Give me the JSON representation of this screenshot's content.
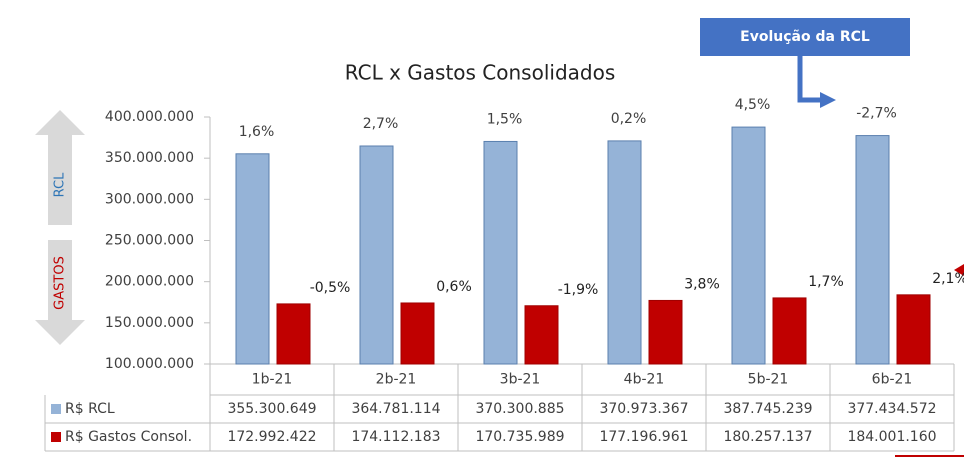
{
  "chart_data": {
    "type": "bar",
    "title": "RCL x Gastos Consolidados",
    "callout": "Evolução da RCL",
    "side_labels": [
      "RCL",
      "GASTOS"
    ],
    "categories": [
      "1b-21",
      "2b-21",
      "3b-21",
      "4b-21",
      "5b-21",
      "6b-21"
    ],
    "series": [
      {
        "name": "R$ RCL",
        "color": "#95b3d7",
        "values": [
          355300649,
          364781114,
          370300885,
          370973367,
          387745239,
          377434572
        ],
        "value_labels": [
          "355.300.649",
          "364.781.114",
          "370.300.885",
          "370.973.367",
          "387.745.239",
          "377.434.572"
        ],
        "data_labels": [
          "1,6%",
          "2,7%",
          "1,5%",
          "0,2%",
          "4,5%",
          "-2,7%"
        ]
      },
      {
        "name": "R$ Gastos Consol.",
        "color": "#c00000",
        "values": [
          172992422,
          174112183,
          170735989,
          177196961,
          180257137,
          184001160
        ],
        "value_labels": [
          "172.992.422",
          "174.112.183",
          "170.735.989",
          "177.196.961",
          "180.257.137",
          "184.001.160"
        ],
        "data_labels": [
          "-0,5%",
          "0,6%",
          "-1,9%",
          "3,8%",
          "1,7%",
          "2,1%"
        ]
      }
    ],
    "ylim": [
      100000000,
      400000000
    ],
    "yticks": [
      {
        "value": 100000000,
        "label": "100.000.000"
      },
      {
        "value": 150000000,
        "label": "150.000.000"
      },
      {
        "value": 200000000,
        "label": "200.000.000"
      },
      {
        "value": 250000000,
        "label": "250.000.000"
      },
      {
        "value": 300000000,
        "label": "300.000.000"
      },
      {
        "value": 350000000,
        "label": "350.000.000"
      },
      {
        "value": 400000000,
        "label": "400.000.000"
      }
    ]
  }
}
